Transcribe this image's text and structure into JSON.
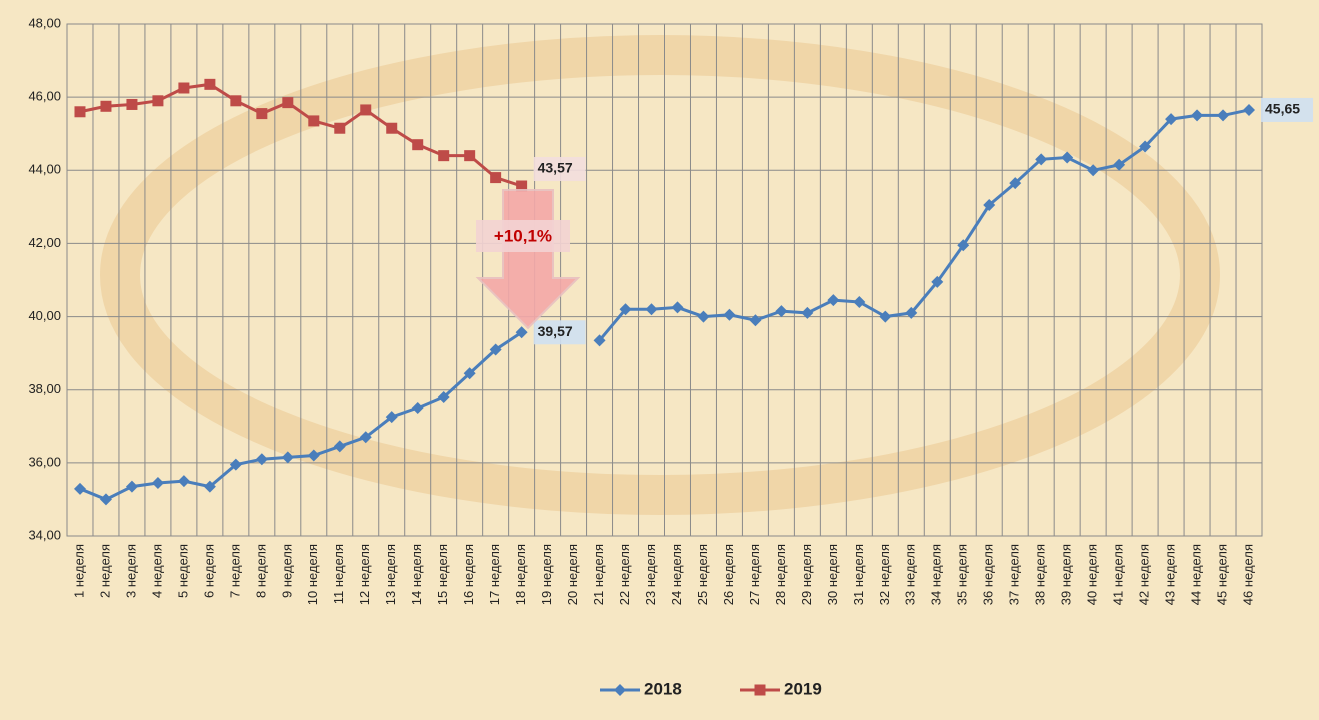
{
  "chart_data": {
    "type": "line",
    "categories": [
      "1 неделя",
      "2 неделя",
      "3 неделя",
      "4 неделя",
      "5 неделя",
      "6 неделя",
      "7 неделя",
      "8 неделя",
      "9 неделя",
      "10 неделя",
      "11 неделя",
      "12 неделя",
      "13 неделя",
      "14 неделя",
      "15 неделя",
      "16 неделя",
      "17 неделя",
      "18 неделя",
      "19 неделя",
      "20 неделя",
      "21 неделя",
      "22 неделя",
      "23 неделя",
      "24 неделя",
      "25 неделя",
      "26 неделя",
      "27 неделя",
      "28 неделя",
      "29 неделя",
      "30 неделя",
      "31 неделя",
      "32 неделя",
      "33 неделя",
      "34 неделя",
      "35 неделя",
      "36 неделя",
      "37 неделя",
      "38 неделя",
      "39 неделя",
      "40 неделя",
      "41 неделя",
      "42 неделя",
      "43 неделя",
      "44 неделя",
      "45 неделя",
      "46 неделя"
    ],
    "series": [
      {
        "name": "2018",
        "color": "#4a7ebb",
        "marker": "diamond",
        "values": [
          35.29,
          35.0,
          35.35,
          35.45,
          35.5,
          35.35,
          35.95,
          36.1,
          36.15,
          36.2,
          36.45,
          36.7,
          37.25,
          37.5,
          37.8,
          38.45,
          39.1,
          39.57,
          null,
          null,
          39.35,
          40.2,
          40.2,
          40.25,
          40.0,
          40.05,
          39.9,
          40.15,
          40.1,
          40.45,
          40.4,
          40.0,
          40.1,
          40.95,
          41.95,
          43.05,
          43.65,
          44.3,
          44.35,
          44.0,
          44.15,
          44.65,
          45.4,
          45.5,
          45.5,
          45.65
        ],
        "value_labels": [
          null,
          null,
          null,
          null,
          null,
          null,
          null,
          null,
          null,
          null,
          null,
          null,
          null,
          null,
          null,
          null,
          null,
          "39,57",
          null,
          null,
          null,
          null,
          null,
          null,
          null,
          null,
          null,
          null,
          null,
          null,
          null,
          null,
          null,
          null,
          null,
          null,
          null,
          null,
          null,
          null,
          null,
          null,
          null,
          null,
          null,
          "45,65"
        ]
      },
      {
        "name": "2019",
        "color": "#be4b48",
        "marker": "square",
        "values": [
          45.6,
          45.75,
          45.8,
          45.9,
          46.25,
          46.35,
          45.9,
          45.55,
          45.85,
          45.35,
          45.15,
          45.65,
          45.15,
          44.7,
          44.4,
          44.4,
          43.8,
          43.57,
          null,
          null,
          null,
          null,
          null,
          null,
          null,
          null,
          null,
          null,
          null,
          null,
          null,
          null,
          null,
          null,
          null,
          null,
          null,
          null,
          null,
          null,
          null,
          null,
          null,
          null,
          null,
          null
        ],
        "value_labels": [
          null,
          null,
          null,
          null,
          null,
          null,
          null,
          null,
          null,
          null,
          null,
          null,
          null,
          null,
          null,
          null,
          null,
          "43,57",
          null,
          null,
          null,
          null,
          null,
          null,
          null,
          null,
          null,
          null,
          null,
          null,
          null,
          null,
          null,
          null,
          null,
          null,
          null,
          null,
          null,
          null,
          null,
          null,
          null,
          null,
          null,
          null
        ]
      }
    ],
    "annotations": [
      "+10,1%"
    ],
    "ylim": [
      34,
      48
    ],
    "yticks": [
      {
        "value": 34,
        "label": "34,00"
      },
      {
        "value": 36,
        "label": "36,00"
      },
      {
        "value": 38,
        "label": "38,00"
      },
      {
        "value": 40,
        "label": "40,00"
      },
      {
        "value": 42,
        "label": "42,00"
      },
      {
        "value": 44,
        "label": "44,00"
      },
      {
        "value": 46,
        "label": "46,00"
      },
      {
        "value": 48,
        "label": "48,00"
      }
    ],
    "grid": true,
    "legend": "bottom"
  }
}
